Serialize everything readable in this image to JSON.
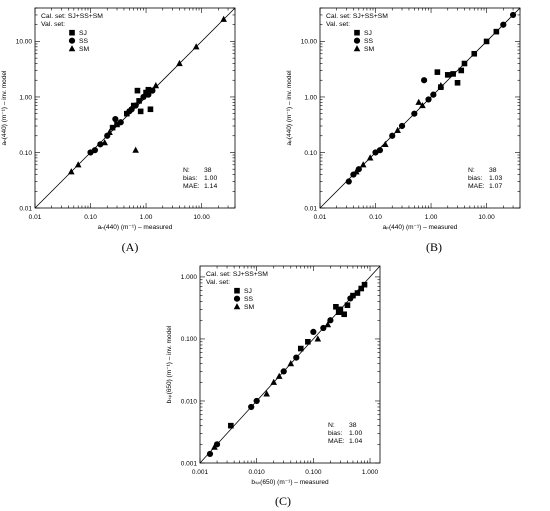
{
  "chart_data": [
    {
      "panel": "(A)",
      "type": "scatter",
      "title": "",
      "xlabel": "aₙ(440) (m⁻¹) – measured",
      "ylabel": "aₙ(440) (m⁻¹) – inv. model",
      "xscale": "log",
      "yscale": "log",
      "xlim": [
        0.01,
        40
      ],
      "ylim": [
        0.01,
        40
      ],
      "xticks": [
        0.01,
        0.1,
        1,
        10
      ],
      "xticklabels": [
        "0.01",
        "0.10",
        "1.00",
        "10.00"
      ],
      "yticks": [
        0.01,
        0.1,
        1,
        10
      ],
      "yticklabels": [
        "0.01",
        "0.10",
        "1.00",
        "10.00"
      ],
      "one_to_one_line": true,
      "grid": false,
      "legend_position": "top-left",
      "legend_header": [
        "Cal. set: SJ+SS+SM",
        "Val. set:"
      ],
      "stats": [
        [
          "N:",
          "38"
        ],
        [
          "bias:",
          "1.00"
        ],
        [
          "MAE:",
          "1.14"
        ]
      ],
      "stats_position": "bottom-right",
      "series": [
        {
          "name": "SJ",
          "marker": "square",
          "points": [
            [
              0.7,
              1.3
            ],
            [
              1.2,
              0.6
            ],
            [
              0.8,
              0.55
            ],
            [
              0.6,
              0.7
            ],
            [
              1.0,
              1.2
            ],
            [
              1.1,
              1.35
            ],
            [
              0.75,
              0.85
            ],
            [
              0.45,
              0.5
            ],
            [
              0.3,
              0.32
            ],
            [
              0.25,
              0.28
            ]
          ]
        },
        {
          "name": "SS",
          "marker": "circle",
          "points": [
            [
              0.1,
              0.1
            ],
            [
              0.12,
              0.11
            ],
            [
              0.15,
              0.14
            ],
            [
              0.2,
              0.2
            ],
            [
              0.28,
              0.4
            ],
            [
              0.35,
              0.35
            ],
            [
              0.5,
              0.55
            ],
            [
              0.65,
              0.7
            ],
            [
              0.9,
              1.0
            ],
            [
              1.1,
              1.1
            ],
            [
              1.3,
              1.3
            ],
            [
              0.55,
              0.6
            ]
          ]
        },
        {
          "name": "SM",
          "marker": "triangle",
          "points": [
            [
              0.045,
              0.045
            ],
            [
              0.06,
              0.06
            ],
            [
              0.65,
              0.11
            ],
            [
              1.5,
              1.6
            ],
            [
              4,
              4
            ],
            [
              8,
              8
            ],
            [
              25,
              25
            ],
            [
              0.18,
              0.15
            ],
            [
              0.22,
              0.23
            ]
          ]
        }
      ]
    },
    {
      "panel": "(B)",
      "type": "scatter",
      "title": "",
      "xlabel": "aₚ(440) (m⁻¹) – measured",
      "ylabel": "aₚ(440) (m⁻¹) – inv. model",
      "xscale": "log",
      "yscale": "log",
      "xlim": [
        0.01,
        40
      ],
      "ylim": [
        0.01,
        40
      ],
      "xticks": [
        0.01,
        0.1,
        1,
        10
      ],
      "xticklabels": [
        "0.01",
        "0.10",
        "1.00",
        "10.00"
      ],
      "yticks": [
        0.01,
        0.1,
        1,
        10
      ],
      "yticklabels": [
        "0.01",
        "0.10",
        "1.00",
        "10.00"
      ],
      "one_to_one_line": true,
      "grid": false,
      "legend_position": "top-left",
      "legend_header": [
        "Cal. set: SJ+SS+SM",
        "Val. set:"
      ],
      "stats": [
        [
          "N:",
          "38"
        ],
        [
          "bias:",
          "1.03"
        ],
        [
          "MAE:",
          "1.07"
        ]
      ],
      "stats_position": "bottom-right",
      "series": [
        {
          "name": "SJ",
          "marker": "square",
          "points": [
            [
              1.3,
              2.8
            ],
            [
              2.0,
              2.5
            ],
            [
              1.5,
              1.5
            ],
            [
              3,
              1.8
            ],
            [
              4,
              4
            ],
            [
              6,
              6
            ],
            [
              10,
              10
            ],
            [
              15,
              15
            ],
            [
              3.5,
              3
            ],
            [
              2.5,
              2.6
            ]
          ]
        },
        {
          "name": "SS",
          "marker": "circle",
          "points": [
            [
              0.033,
              0.03
            ],
            [
              0.04,
              0.04
            ],
            [
              0.05,
              0.05
            ],
            [
              0.1,
              0.1
            ],
            [
              0.12,
              0.11
            ],
            [
              0.2,
              0.2
            ],
            [
              0.3,
              0.3
            ],
            [
              0.5,
              0.5
            ],
            [
              0.75,
              2.0
            ],
            [
              0.9,
              0.9
            ],
            [
              1.1,
              1.1
            ],
            [
              20,
              20
            ],
            [
              30,
              30
            ]
          ]
        },
        {
          "name": "SM",
          "marker": "triangle",
          "points": [
            [
              0.045,
              0.045
            ],
            [
              0.06,
              0.06
            ],
            [
              0.08,
              0.08
            ],
            [
              0.15,
              0.14
            ],
            [
              0.25,
              0.25
            ],
            [
              0.6,
              0.8
            ],
            [
              0.7,
              0.7
            ],
            [
              1.5,
              1.6
            ]
          ]
        }
      ]
    },
    {
      "panel": "(C)",
      "type": "scatter",
      "title": "",
      "xlabel": "bₛₚ(650) (m⁻¹) – measured",
      "ylabel": "bₛₚ(650) (m⁻¹) – inv. model",
      "xscale": "log",
      "yscale": "log",
      "xlim": [
        0.001,
        1.5
      ],
      "ylim": [
        0.001,
        1.5
      ],
      "xticks": [
        0.001,
        0.01,
        0.1,
        1
      ],
      "xticklabels": [
        "0.001",
        "0.010",
        "0.100",
        "1.000"
      ],
      "yticks": [
        0.001,
        0.01,
        0.1,
        1
      ],
      "yticklabels": [
        "0.001",
        "0.010",
        "0.100",
        "1.000"
      ],
      "one_to_one_line": true,
      "grid": false,
      "legend_position": "top-left",
      "legend_header": [
        "Cal. set: SJ+SS+SM",
        "Val. set:"
      ],
      "stats": [
        [
          "N:",
          "38"
        ],
        [
          "bias:",
          "1.00"
        ],
        [
          "MAE:",
          "1.04"
        ]
      ],
      "stats_position": "bottom-right",
      "series": [
        {
          "name": "SJ",
          "marker": "square",
          "points": [
            [
              0.0035,
              0.004
            ],
            [
              0.06,
              0.07
            ],
            [
              0.08,
              0.09
            ],
            [
              0.25,
              0.33
            ],
            [
              0.3,
              0.3
            ],
            [
              0.35,
              0.25
            ],
            [
              0.4,
              0.35
            ],
            [
              0.5,
              0.5
            ],
            [
              0.6,
              0.55
            ],
            [
              0.8,
              0.75
            ],
            [
              0.7,
              0.65
            ],
            [
              0.28,
              0.27
            ]
          ]
        },
        {
          "name": "SS",
          "marker": "circle",
          "points": [
            [
              0.0015,
              0.0014
            ],
            [
              0.002,
              0.002
            ],
            [
              0.008,
              0.008
            ],
            [
              0.01,
              0.01
            ],
            [
              0.03,
              0.03
            ],
            [
              0.05,
              0.05
            ],
            [
              0.1,
              0.13
            ],
            [
              0.15,
              0.15
            ],
            [
              0.2,
              0.2
            ],
            [
              0.45,
              0.45
            ]
          ]
        },
        {
          "name": "SM",
          "marker": "triangle",
          "points": [
            [
              0.0018,
              0.0018
            ],
            [
              0.015,
              0.013
            ],
            [
              0.02,
              0.02
            ],
            [
              0.025,
              0.025
            ],
            [
              0.04,
              0.04
            ],
            [
              0.12,
              0.1
            ],
            [
              0.18,
              0.17
            ]
          ]
        }
      ]
    }
  ]
}
